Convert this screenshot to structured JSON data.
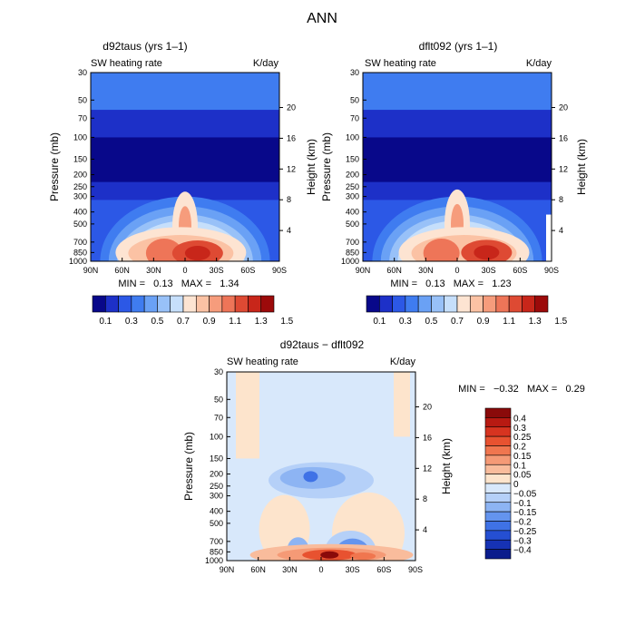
{
  "page_title": "ANN",
  "chart_data": [
    {
      "id": "d92taus",
      "type": "heatmap",
      "title": "d92taus (yrs 1–1)",
      "subtitle_left": "SW heating rate",
      "subtitle_right": "K/day",
      "xlabel": "",
      "ylabel": "Pressure (mb)",
      "ylabel_right": "Height (km)",
      "x_ticks": [
        "90N",
        "60N",
        "30N",
        "0",
        "30S",
        "60S",
        "90S"
      ],
      "x_range": [
        -90,
        90
      ],
      "y_ticks_left": [
        "30",
        "50",
        "70",
        "100",
        "150",
        "200",
        "250",
        "300",
        "400",
        "500",
        "700",
        "850",
        "1000"
      ],
      "y_ticks_right": [
        "20",
        "16",
        "12",
        "8",
        "4"
      ],
      "stats": "MIN =   0.13   MAX =   1.34",
      "min": 0.13,
      "max": 1.34,
      "colorbar_labels": [
        "0.1",
        "0.3",
        "0.5",
        "0.7",
        "0.9",
        "1.1",
        "1.3",
        "1.5"
      ],
      "colorbar_colors": [
        "#08088a",
        "#1d30c8",
        "#2c58e6",
        "#3f7cf0",
        "#6aa1f5",
        "#98c1f8",
        "#c6dffb",
        "#fde4d2",
        "#fbc2a4",
        "#f69c7c",
        "#ee7558",
        "#de4a33",
        "#c8261a",
        "#9c0a0a"
      ],
      "features": [
        {
          "x": 0,
          "p": 520,
          "value": 0.98
        },
        {
          "x": -20,
          "p": 860,
          "value": 1.18
        },
        {
          "x": 12,
          "p": 860,
          "value": 1.34
        }
      ]
    },
    {
      "id": "dflt092",
      "type": "heatmap",
      "title": "dflt092 (yrs 1–1)",
      "subtitle_left": "SW heating rate",
      "subtitle_right": "K/day",
      "xlabel": "",
      "ylabel": "Pressure (mb)",
      "ylabel_right": "Height (km)",
      "x_ticks": [
        "90N",
        "60N",
        "30N",
        "0",
        "30S",
        "60S",
        "90S"
      ],
      "x_range": [
        -90,
        90
      ],
      "y_ticks_left": [
        "30",
        "50",
        "70",
        "100",
        "150",
        "200",
        "250",
        "300",
        "400",
        "500",
        "700",
        "850",
        "1000"
      ],
      "y_ticks_right": [
        "20",
        "16",
        "12",
        "8",
        "4"
      ],
      "stats": "MIN =   0.13   MAX =   1.23",
      "min": 0.13,
      "max": 1.23,
      "colorbar_labels": [
        "0.1",
        "0.3",
        "0.5",
        "0.7",
        "0.9",
        "1.1",
        "1.3",
        "1.5"
      ],
      "colorbar_colors": [
        "#08088a",
        "#1d30c8",
        "#2c58e6",
        "#3f7cf0",
        "#6aa1f5",
        "#98c1f8",
        "#c6dffb",
        "#fde4d2",
        "#fbc2a4",
        "#f69c7c",
        "#ee7558",
        "#de4a33",
        "#c8261a",
        "#9c0a0a"
      ],
      "features": [
        {
          "x": 0,
          "p": 500,
          "value": 0.95
        },
        {
          "x": -15,
          "p": 860,
          "value": 1.08
        },
        {
          "x": 28,
          "p": 850,
          "value": 1.23
        }
      ]
    },
    {
      "id": "difference",
      "type": "heatmap",
      "title": "d92taus − dflt092",
      "subtitle_left": "SW heating rate",
      "subtitle_right": "K/day",
      "xlabel": "",
      "ylabel": "Pressure (mb)",
      "ylabel_right": "Height (km)",
      "x_ticks": [
        "90N",
        "60N",
        "30N",
        "0",
        "30S",
        "60S",
        "90S"
      ],
      "x_range": [
        -90,
        90
      ],
      "y_ticks_left": [
        "30",
        "50",
        "70",
        "100",
        "150",
        "200",
        "250",
        "300",
        "400",
        "500",
        "700",
        "850",
        "1000"
      ],
      "y_ticks_right": [
        "20",
        "16",
        "12",
        "8",
        "4"
      ],
      "stats": "MIN =   −0.32   MAX =   0.29",
      "min": -0.32,
      "max": 0.29,
      "colorbar_labels": [
        "0.4",
        "0.3",
        "0.25",
        "0.2",
        "0.15",
        "0.1",
        "0.05",
        "0",
        "−0.05",
        "−0.1",
        "−0.15",
        "−0.2",
        "−0.25",
        "−0.3",
        "−0.4"
      ],
      "colorbar_colors": [
        "#8a0a0a",
        "#b81a12",
        "#d73420",
        "#e85230",
        "#f0764f",
        "#f59a76",
        "#f9bc9c",
        "#fde4cc",
        "#d8e8fb",
        "#b5d0f8",
        "#8db4f3",
        "#6494ee",
        "#3f72e6",
        "#254fd2",
        "#1632b4",
        "#0a1c8c"
      ],
      "features": [
        {
          "x": 10,
          "p": 880,
          "value": 0.29
        },
        {
          "x": 30,
          "p": 860,
          "value": -0.32
        },
        {
          "x": -10,
          "p": 220,
          "value": -0.2
        }
      ]
    }
  ]
}
